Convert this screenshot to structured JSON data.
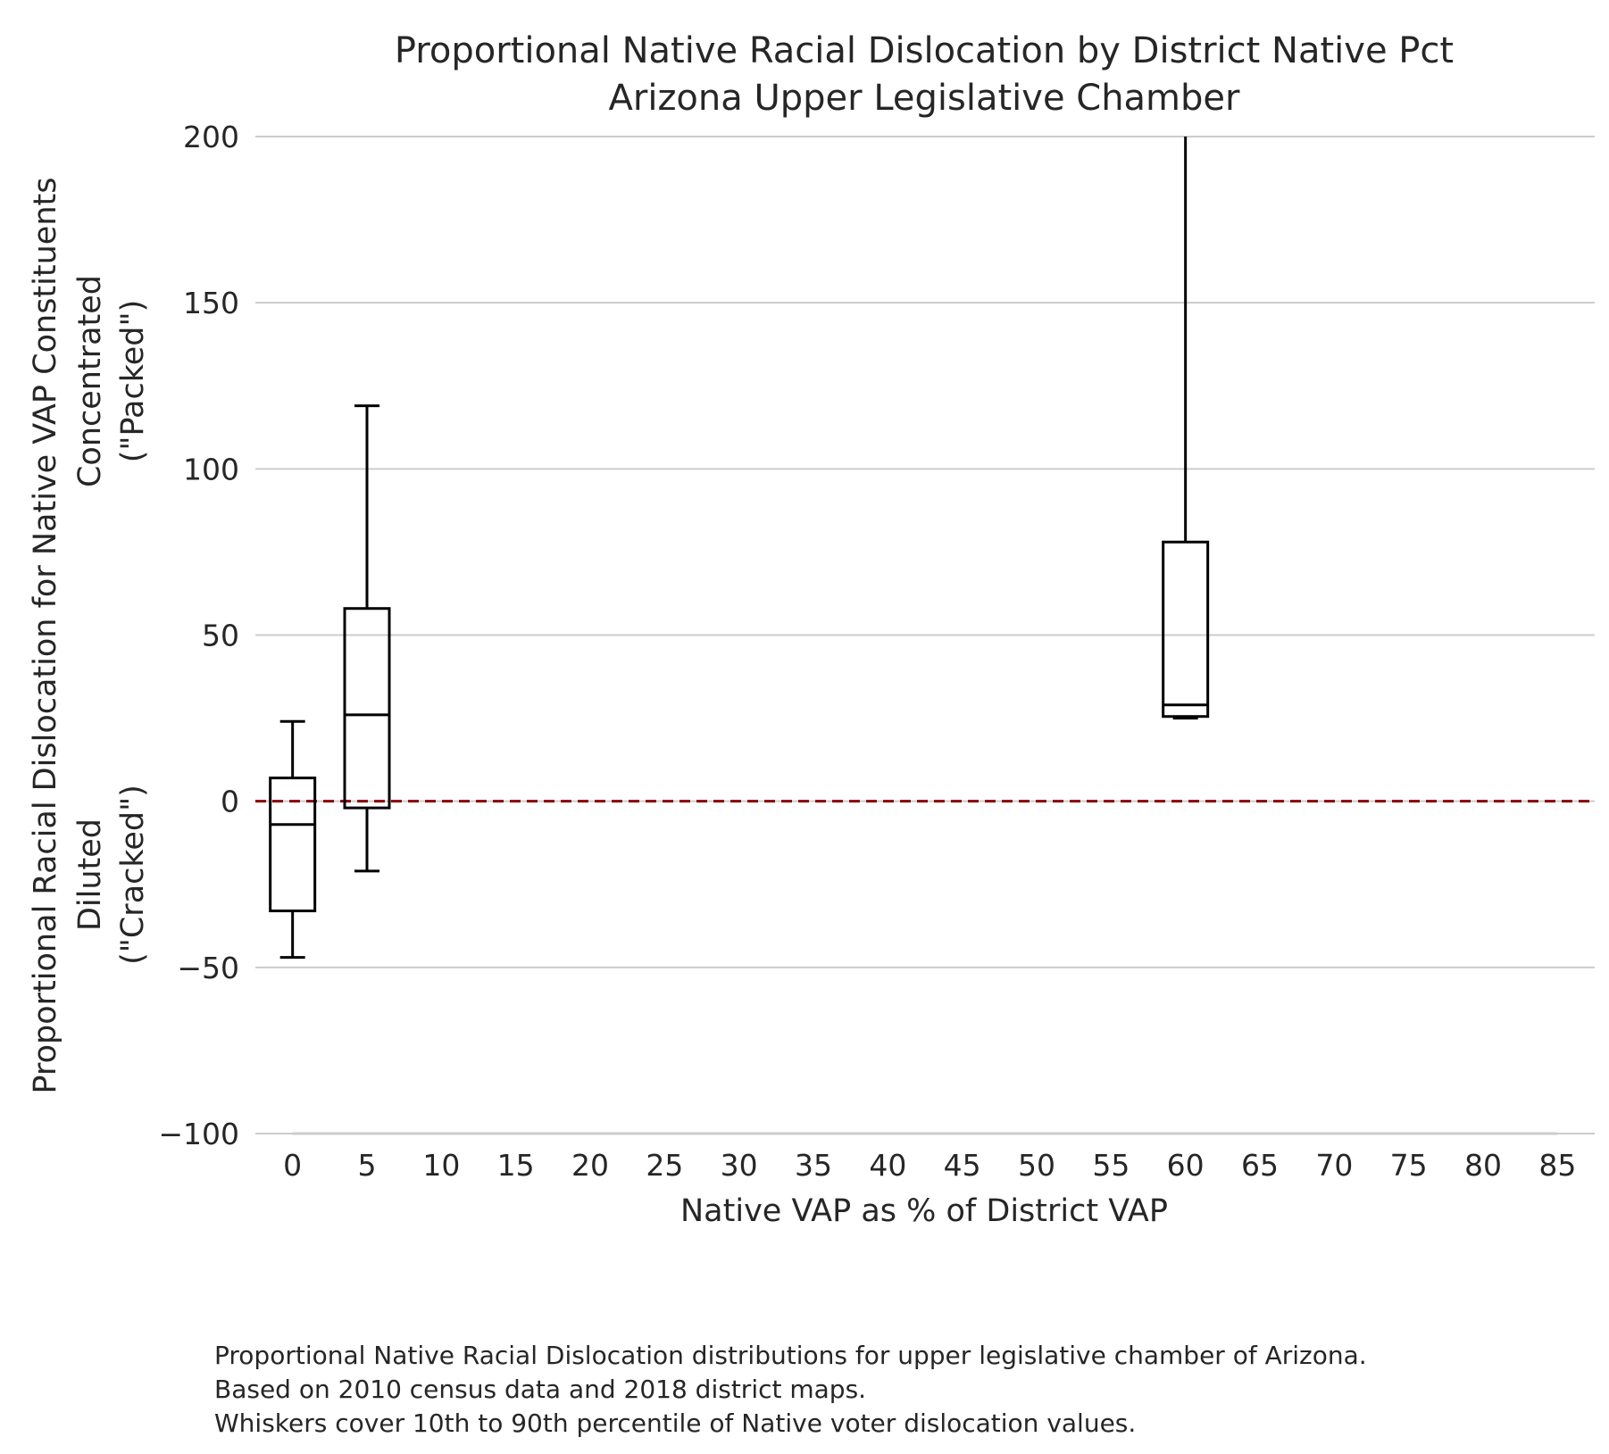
{
  "chart_data": {
    "type": "box",
    "title_lines": [
      "Proportional Native Racial Dislocation by District Native Pct",
      "Arizona Upper Legislative Chamber"
    ],
    "xlabel": "Native VAP as % of District VAP",
    "ylabel_lines": [
      "Proportional Racial Dislocation for Native VAP Constituents",
      "Concentrated",
      "(\"Packed\")",
      "Diluted",
      "(\"Cracked\")"
    ],
    "x_ticks": [
      0,
      5,
      10,
      15,
      20,
      25,
      30,
      35,
      40,
      45,
      50,
      55,
      60,
      65,
      70,
      75,
      80,
      85
    ],
    "y_ticks": [
      200,
      150,
      100,
      50,
      0,
      -50,
      -100
    ],
    "xlim": [
      -2.5,
      87.5
    ],
    "ylim": [
      -100,
      200
    ],
    "grid": true,
    "reference_line": {
      "y": 0,
      "color": "#8b0000",
      "style": "dashed"
    },
    "boxes": [
      {
        "x": 0,
        "whisker_low": -47,
        "q1": -33,
        "median": -7,
        "q3": 7,
        "whisker_high": 24
      },
      {
        "x": 5,
        "whisker_low": -21,
        "q1": -2,
        "median": 26,
        "q3": 58,
        "whisker_high": 119
      },
      {
        "x": 60,
        "whisker_low": 25,
        "q1": 25.5,
        "median": 29,
        "q3": 78,
        "whisker_high": 200
      }
    ],
    "caption_lines": [
      "Proportional Native Racial Dislocation distributions for upper legislative chamber of Arizona.",
      "Based on 2010 census data and 2018 district maps.",
      "Whiskers cover 10th to 90th percentile of Native voter dislocation values."
    ]
  }
}
